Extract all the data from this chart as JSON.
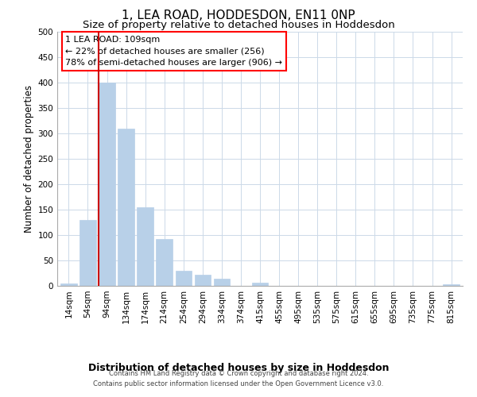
{
  "title": "1, LEA ROAD, HODDESDON, EN11 0NP",
  "subtitle": "Size of property relative to detached houses in Hoddesdon",
  "xlabel": "Distribution of detached houses by size in Hoddesdon",
  "ylabel": "Number of detached properties",
  "bar_labels": [
    "14sqm",
    "54sqm",
    "94sqm",
    "134sqm",
    "174sqm",
    "214sqm",
    "254sqm",
    "294sqm",
    "334sqm",
    "374sqm",
    "415sqm",
    "455sqm",
    "495sqm",
    "535sqm",
    "575sqm",
    "615sqm",
    "655sqm",
    "695sqm",
    "735sqm",
    "775sqm",
    "815sqm"
  ],
  "bar_values": [
    5,
    130,
    400,
    310,
    155,
    92,
    30,
    22,
    14,
    0,
    6,
    0,
    0,
    0,
    0,
    0,
    0,
    0,
    0,
    0,
    3
  ],
  "bar_color": "#b8d0e8",
  "bar_edge_color": "#b8d0e8",
  "vline_color": "#cc0000",
  "ylim": [
    0,
    500
  ],
  "yticks": [
    0,
    50,
    100,
    150,
    200,
    250,
    300,
    350,
    400,
    450,
    500
  ],
  "annotation_text": "1 LEA ROAD: 109sqm\n← 22% of detached houses are smaller (256)\n78% of semi-detached houses are larger (906) →",
  "footnote1": "Contains HM Land Registry data © Crown copyright and database right 2024.",
  "footnote2": "Contains public sector information licensed under the Open Government Licence v3.0.",
  "background_color": "#ffffff",
  "grid_color": "#ccd9e8",
  "title_fontsize": 11,
  "subtitle_fontsize": 9.5,
  "xlabel_fontsize": 9,
  "ylabel_fontsize": 8.5,
  "tick_fontsize": 7.5,
  "annotation_fontsize": 8,
  "footnote_fontsize": 6
}
